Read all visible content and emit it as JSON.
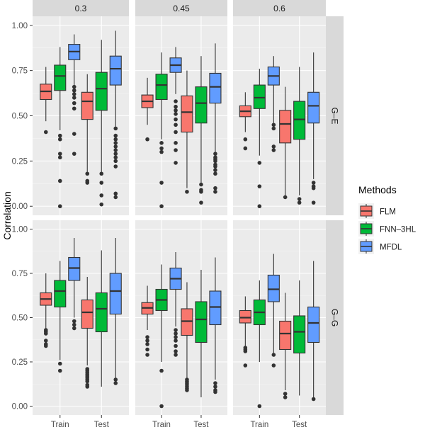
{
  "chart_data": {
    "type": "boxplot",
    "title": "",
    "xlabel": "",
    "ylabel": "Correlation",
    "ylim": [
      -0.05,
      1.05
    ],
    "yticks": [
      "0.00",
      "0.25",
      "0.50",
      "0.75",
      "1.00"
    ],
    "ytick_values": [
      0,
      0.25,
      0.5,
      0.75,
      1.0
    ],
    "categories": [
      "Train",
      "Test"
    ],
    "facet_columns": [
      "0.3",
      "0.45",
      "0.6"
    ],
    "facet_rows": [
      "G–E",
      "G–G"
    ],
    "legend": {
      "title": "Methods",
      "placement": "right",
      "items": [
        {
          "name": "FLM",
          "color": "#F8766D"
        },
        {
          "name": "FNN–3HL",
          "color": "#00BA38"
        },
        {
          "name": "MFDL",
          "color": "#619CFF"
        }
      ]
    },
    "panels": [
      {
        "row": "G–E",
        "col": "0.3",
        "boxes": [
          {
            "category": "Train",
            "method": "FLM",
            "min": 0.47,
            "q1": 0.59,
            "median": 0.635,
            "q3": 0.675,
            "max": 0.77,
            "outliers": [
              0.41
            ]
          },
          {
            "category": "Train",
            "method": "FNN–3HL",
            "min": 0.42,
            "q1": 0.64,
            "median": 0.72,
            "q3": 0.78,
            "max": 0.88,
            "outliers": [
              0.39,
              0.37,
              0.29,
              0.27,
              0.14,
              0.0
            ]
          },
          {
            "category": "Train",
            "method": "MFDL",
            "min": 0.67,
            "q1": 0.81,
            "median": 0.855,
            "q3": 0.895,
            "max": 0.95,
            "outliers": [
              0.66,
              0.64,
              0.62,
              0.6,
              0.57,
              0.54,
              0.4,
              0.29
            ]
          },
          {
            "category": "Test",
            "method": "FLM",
            "min": 0.19,
            "q1": 0.48,
            "median": 0.58,
            "q3": 0.63,
            "max": 0.73,
            "outliers": [
              0.18,
              0.14,
              0.13
            ]
          },
          {
            "category": "Test",
            "method": "FNN–3HL",
            "min": 0.19,
            "q1": 0.53,
            "median": 0.65,
            "q3": 0.74,
            "max": 0.92,
            "outliers": [
              0.18,
              0.13,
              0.06,
              0.01
            ]
          },
          {
            "category": "Test",
            "method": "MFDL",
            "min": 0.44,
            "q1": 0.67,
            "median": 0.76,
            "q3": 0.83,
            "max": 0.97,
            "outliers": [
              0.43,
              0.39,
              0.37,
              0.35,
              0.33,
              0.31,
              0.29,
              0.27,
              0.25,
              0.22,
              0.07,
              0.05
            ]
          }
        ]
      },
      {
        "row": "G–E",
        "col": "0.45",
        "boxes": [
          {
            "category": "Train",
            "method": "FLM",
            "min": 0.45,
            "q1": 0.545,
            "median": 0.58,
            "q3": 0.615,
            "max": 0.71,
            "outliers": [
              0.37
            ]
          },
          {
            "category": "Train",
            "method": "FNN–3HL",
            "min": 0.37,
            "q1": 0.59,
            "median": 0.67,
            "q3": 0.73,
            "max": 0.85,
            "outliers": [
              0.35,
              0.32,
              0.3,
              0.13,
              0.0
            ]
          },
          {
            "category": "Train",
            "method": "MFDL",
            "min": 0.62,
            "q1": 0.74,
            "median": 0.78,
            "q3": 0.82,
            "max": 0.88,
            "outliers": [
              0.58,
              0.55,
              0.53,
              0.51,
              0.48,
              0.45,
              0.41,
              0.35,
              0.31,
              0.24
            ]
          },
          {
            "category": "Test",
            "method": "FLM",
            "min": 0.1,
            "q1": 0.41,
            "median": 0.52,
            "q3": 0.61,
            "max": 0.75,
            "outliers": [
              0.08
            ]
          },
          {
            "category": "Test",
            "method": "FNN–3HL",
            "min": 0.13,
            "q1": 0.46,
            "median": 0.57,
            "q3": 0.66,
            "max": 0.83,
            "outliers": [
              0.12,
              0.09,
              0.08,
              0.02
            ]
          },
          {
            "category": "Test",
            "method": "MFDL",
            "min": 0.3,
            "q1": 0.57,
            "median": 0.66,
            "q3": 0.735,
            "max": 0.9,
            "outliers": [
              0.29,
              0.27,
              0.26,
              0.25,
              0.23,
              0.22,
              0.2,
              0.18,
              0.1,
              0.08
            ]
          }
        ]
      },
      {
        "row": "G–E",
        "col": "0.6",
        "boxes": [
          {
            "category": "Train",
            "method": "FLM",
            "min": 0.41,
            "q1": 0.495,
            "median": 0.525,
            "q3": 0.555,
            "max": 0.63,
            "outliers": [
              0.37,
              0.32
            ]
          },
          {
            "category": "Train",
            "method": "FNN–3HL",
            "min": 0.28,
            "q1": 0.54,
            "median": 0.6,
            "q3": 0.67,
            "max": 0.76,
            "outliers": [
              0.24,
              0.11,
              0.0
            ]
          },
          {
            "category": "Train",
            "method": "MFDL",
            "min": 0.46,
            "q1": 0.67,
            "median": 0.72,
            "q3": 0.77,
            "max": 0.83,
            "outliers": [
              0.45,
              0.43,
              0.33,
              0.31
            ]
          },
          {
            "category": "Test",
            "method": "FLM",
            "min": 0.06,
            "q1": 0.35,
            "median": 0.455,
            "q3": 0.53,
            "max": 0.66,
            "outliers": [
              0.05
            ]
          },
          {
            "category": "Test",
            "method": "FNN–3HL",
            "min": 0.06,
            "q1": 0.37,
            "median": 0.48,
            "q3": 0.58,
            "max": 0.77,
            "outliers": [
              0.04,
              0.02
            ]
          },
          {
            "category": "Test",
            "method": "MFDL",
            "min": 0.15,
            "q1": 0.46,
            "median": 0.555,
            "q3": 0.63,
            "max": 0.85,
            "outliers": [
              0.13,
              0.11,
              0.1,
              0.02
            ]
          }
        ]
      },
      {
        "row": "G–G",
        "col": "0.3",
        "boxes": [
          {
            "category": "Train",
            "method": "FLM",
            "min": 0.44,
            "q1": 0.57,
            "median": 0.605,
            "q3": 0.64,
            "max": 0.75,
            "outliers": [
              0.43,
              0.42,
              0.41,
              0.37,
              0.35,
              0.34
            ]
          },
          {
            "category": "Train",
            "method": "FNN–3HL",
            "min": 0.26,
            "q1": 0.56,
            "median": 0.65,
            "q3": 0.71,
            "max": 0.82,
            "outliers": [
              0.24,
              0.2
            ]
          },
          {
            "category": "Train",
            "method": "MFDL",
            "min": 0.5,
            "q1": 0.71,
            "median": 0.78,
            "q3": 0.84,
            "max": 0.95,
            "outliers": [
              0.48,
              0.46,
              0.44
            ]
          },
          {
            "category": "Test",
            "method": "FLM",
            "min": 0.23,
            "q1": 0.44,
            "median": 0.53,
            "q3": 0.6,
            "max": 0.73,
            "outliers": [
              0.21,
              0.2,
              0.19,
              0.18,
              0.17,
              0.16,
              0.15,
              0.14,
              0.12,
              0.11
            ]
          },
          {
            "category": "Test",
            "method": "FNN–3HL",
            "min": 0.11,
            "q1": 0.42,
            "median": 0.55,
            "q3": 0.64,
            "max": 0.88,
            "outliers": []
          },
          {
            "category": "Test",
            "method": "MFDL",
            "min": 0.16,
            "q1": 0.52,
            "median": 0.65,
            "q3": 0.75,
            "max": 0.95,
            "outliers": [
              0.15,
              0.13
            ]
          }
        ]
      },
      {
        "row": "G–G",
        "col": "0.45",
        "boxes": [
          {
            "category": "Train",
            "method": "FLM",
            "min": 0.43,
            "q1": 0.52,
            "median": 0.555,
            "q3": 0.585,
            "max": 0.68,
            "outliers": [
              0.39,
              0.37,
              0.35,
              0.32,
              0.29
            ]
          },
          {
            "category": "Train",
            "method": "FNN–3HL",
            "min": 0.25,
            "q1": 0.54,
            "median": 0.6,
            "q3": 0.66,
            "max": 0.8,
            "outliers": [
              0.2,
              0.0
            ]
          },
          {
            "category": "Train",
            "method": "MFDL",
            "min": 0.45,
            "q1": 0.66,
            "median": 0.72,
            "q3": 0.78,
            "max": 0.87,
            "outliers": [
              0.43,
              0.41,
              0.39,
              0.37,
              0.34,
              0.31,
              0.29
            ]
          },
          {
            "category": "Test",
            "method": "FLM",
            "min": 0.16,
            "q1": 0.4,
            "median": 0.48,
            "q3": 0.55,
            "max": 0.7,
            "outliers": [
              0.15,
              0.14,
              0.13,
              0.12,
              0.11,
              0.1,
              0.09
            ]
          },
          {
            "category": "Test",
            "method": "FNN–3HL",
            "min": 0.05,
            "q1": 0.36,
            "median": 0.49,
            "q3": 0.59,
            "max": 0.77,
            "outliers": []
          },
          {
            "category": "Test",
            "method": "MFDL",
            "min": 0.15,
            "q1": 0.46,
            "median": 0.56,
            "q3": 0.65,
            "max": 0.84,
            "outliers": [
              0.13,
              0.11,
              0.09,
              0.08
            ]
          }
        ]
      },
      {
        "row": "G–G",
        "col": "0.6",
        "boxes": [
          {
            "category": "Train",
            "method": "FLM",
            "min": 0.34,
            "q1": 0.47,
            "median": 0.5,
            "q3": 0.54,
            "max": 0.62,
            "outliers": [
              0.33,
              0.32,
              0.31,
              0.23
            ]
          },
          {
            "category": "Train",
            "method": "FNN–3HL",
            "min": 0.25,
            "q1": 0.46,
            "median": 0.53,
            "q3": 0.6,
            "max": 0.71,
            "outliers": [
              0.0
            ]
          },
          {
            "category": "Train",
            "method": "MFDL",
            "min": 0.3,
            "q1": 0.59,
            "median": 0.66,
            "q3": 0.74,
            "max": 0.86,
            "outliers": [
              0.29,
              0.23
            ]
          },
          {
            "category": "Test",
            "method": "FLM",
            "min": 0.09,
            "q1": 0.32,
            "median": 0.41,
            "q3": 0.48,
            "max": 0.64,
            "outliers": [
              0.07,
              0.05
            ]
          },
          {
            "category": "Test",
            "method": "FNN–3HL",
            "min": 0.06,
            "q1": 0.3,
            "median": 0.42,
            "q3": 0.51,
            "max": 0.71,
            "outliers": []
          },
          {
            "category": "Test",
            "method": "MFDL",
            "min": 0.05,
            "q1": 0.36,
            "median": 0.47,
            "q3": 0.56,
            "max": 0.82,
            "outliers": [
              0.04
            ]
          }
        ]
      }
    ]
  }
}
